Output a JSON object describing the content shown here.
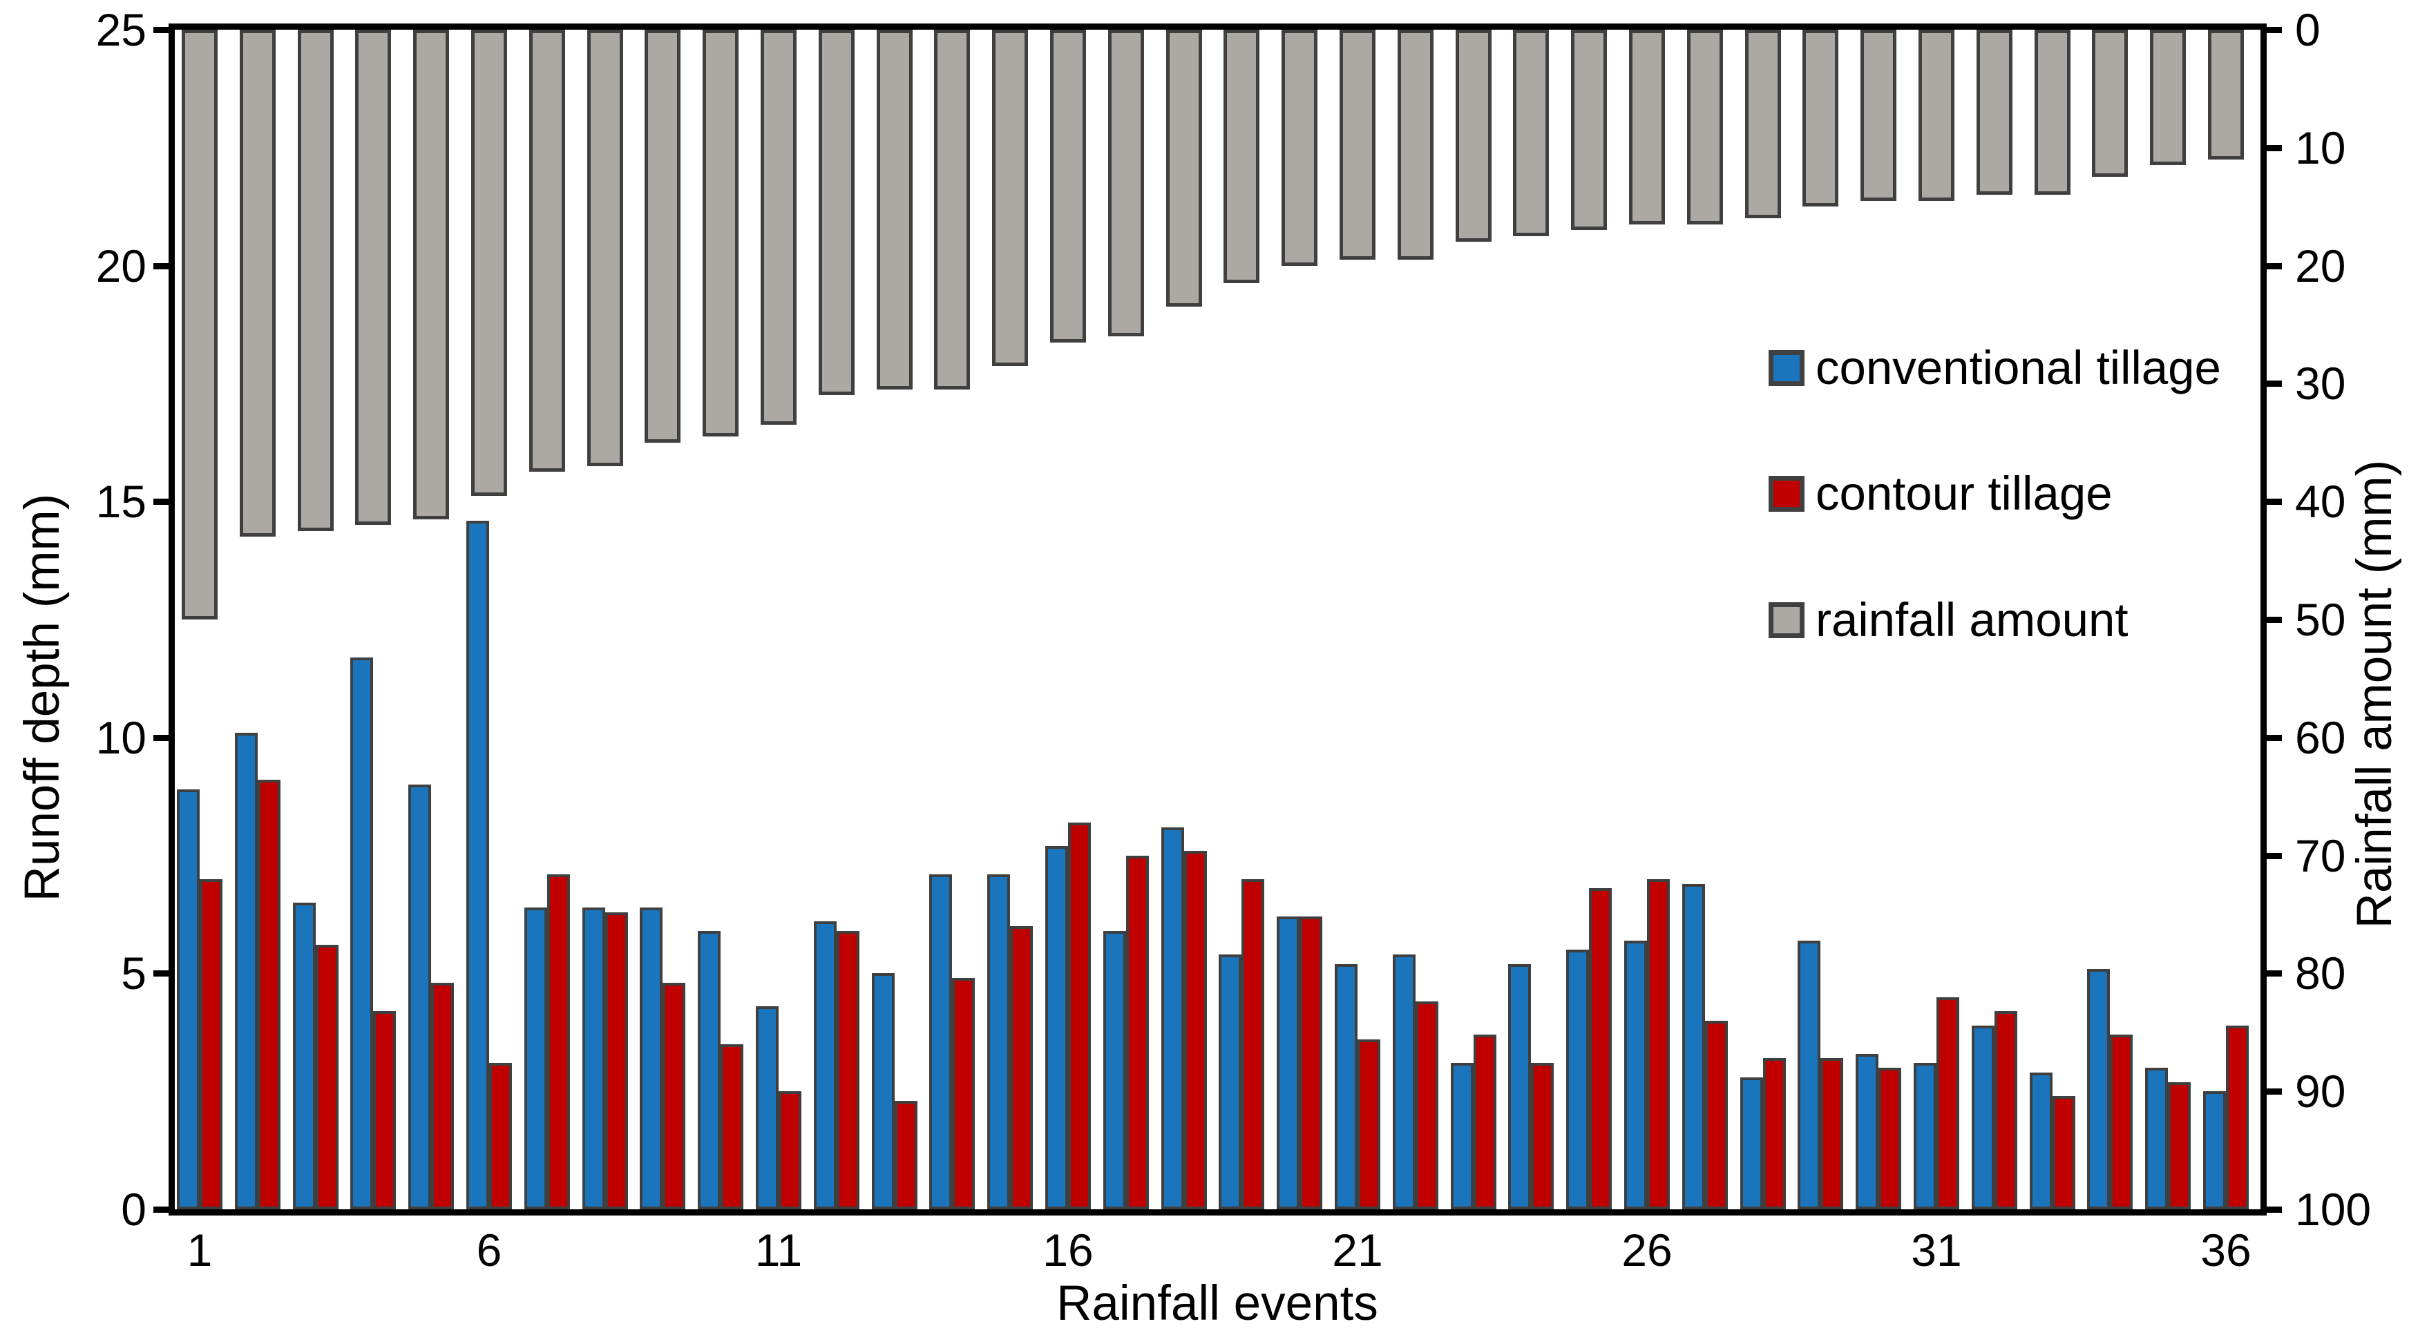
{
  "chart": {
    "x_title": "Rainfall events",
    "y_left_title": "Runoff depth (mm)",
    "y_right_title": "Rainfall amount (mm)"
  },
  "legend": {
    "items": [
      {
        "label": "conventional tillage",
        "color": "#1B75BC",
        "marker": "blue-square-icon"
      },
      {
        "label": "contour tillage",
        "color": "#C00000",
        "marker": "red-square-icon"
      },
      {
        "label": "rainfall amount",
        "color": "#ACA8A4",
        "marker": "gray-square-icon"
      }
    ]
  },
  "axes": {
    "y_left": {
      "title": "Runoff depth (mm)",
      "ticks": [
        0,
        5,
        10,
        15,
        20,
        25
      ],
      "min": 0,
      "max": 25
    },
    "y_right": {
      "title": "Rainfall amount (mm)",
      "ticks": [
        0,
        10,
        20,
        30,
        40,
        50,
        60,
        70,
        80,
        90,
        100
      ],
      "min": 0,
      "max": 100,
      "inverted": true
    },
    "x": {
      "title": "Rainfall events",
      "tick_labels": [
        1,
        6,
        11,
        16,
        21,
        26,
        31,
        36
      ],
      "n_events": 36
    }
  },
  "chart_data": {
    "type": "bar",
    "title": "",
    "xlabel": "Rainfall events",
    "ylabel_left": "Runoff depth (mm)",
    "ylabel_right": "Rainfall amount (mm)",
    "ylim_left": [
      0,
      25
    ],
    "ylim_right": [
      0,
      100
    ],
    "grid": false,
    "legend_position": "right-middle",
    "x": [
      1,
      2,
      3,
      4,
      5,
      6,
      7,
      8,
      9,
      10,
      11,
      12,
      13,
      14,
      15,
      16,
      17,
      18,
      19,
      20,
      21,
      22,
      23,
      24,
      25,
      26,
      27,
      28,
      29,
      30,
      31,
      32,
      33,
      34,
      35,
      36
    ],
    "series": [
      {
        "name": "conventional tillage",
        "axis": "left",
        "color": "#1B75BC",
        "values": [
          8.9,
          10.1,
          6.5,
          11.7,
          9.0,
          14.6,
          6.4,
          6.4,
          6.4,
          5.9,
          4.3,
          6.1,
          5.0,
          7.1,
          7.1,
          7.7,
          5.9,
          8.1,
          5.4,
          6.2,
          5.2,
          5.4,
          3.1,
          5.2,
          5.5,
          5.7,
          6.9,
          2.8,
          5.7,
          3.3,
          3.1,
          3.9,
          2.9,
          5.1,
          3.0,
          2.5
        ]
      },
      {
        "name": "contour tillage",
        "axis": "left",
        "color": "#C00000",
        "values": [
          7.0,
          9.1,
          5.6,
          4.2,
          4.8,
          3.1,
          7.1,
          6.3,
          4.8,
          3.5,
          2.5,
          5.9,
          2.3,
          4.9,
          6.0,
          8.2,
          7.5,
          7.6,
          7.0,
          6.2,
          3.6,
          4.4,
          3.7,
          3.1,
          6.8,
          7.0,
          4.0,
          3.2,
          3.2,
          3.0,
          4.5,
          4.2,
          2.4,
          3.7,
          2.7,
          3.9
        ]
      },
      {
        "name": "rainfall amount",
        "axis": "right",
        "color": "#ACA8A4",
        "direction": "hanging_from_top",
        "values": [
          50,
          43,
          42.5,
          42,
          41.5,
          39.5,
          37.5,
          37,
          35,
          34.5,
          33.5,
          31,
          30.5,
          30.5,
          28.5,
          26.5,
          26,
          23.5,
          21.5,
          20,
          19.5,
          19.5,
          18,
          17.5,
          17,
          16.5,
          16.5,
          16,
          15,
          14.5,
          14.5,
          14,
          14,
          12.5,
          11.5,
          11
        ]
      }
    ]
  },
  "colors": {
    "background": "#FFFFFF",
    "axis": "#000000",
    "bar_outline": "#3F3F3F",
    "text": "#000000"
  }
}
